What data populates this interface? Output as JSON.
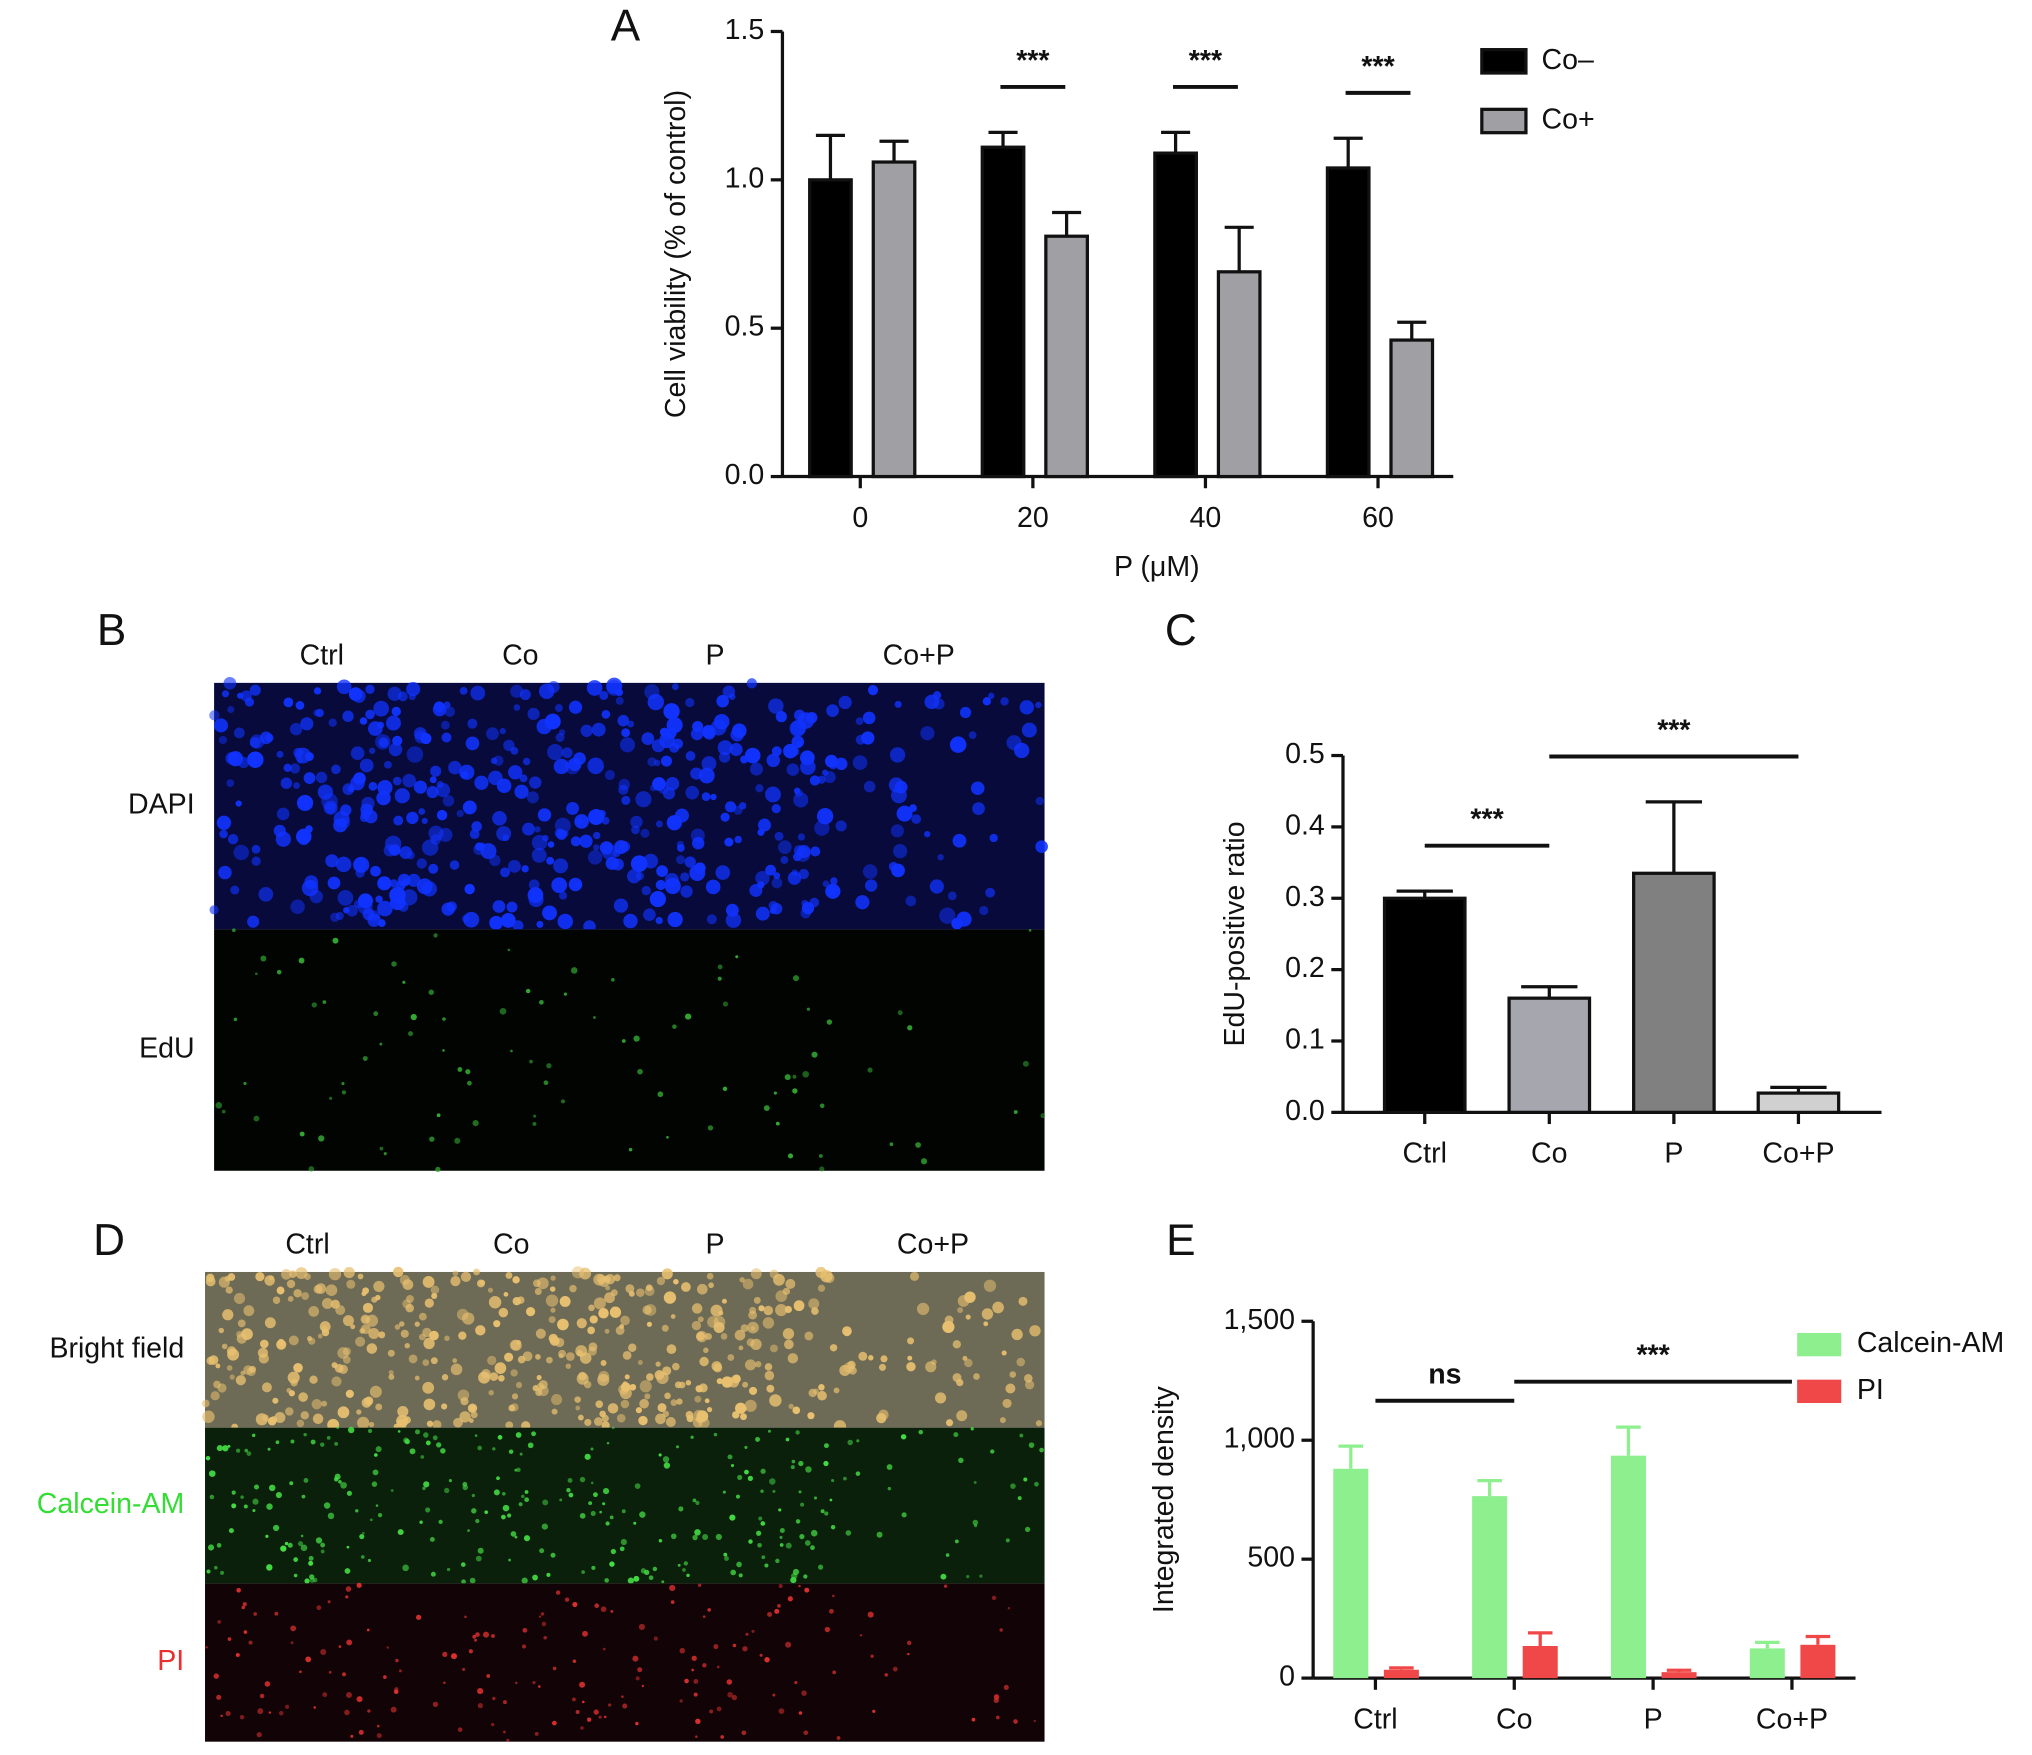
{
  "chart_data": [
    {
      "panel": "A",
      "type": "bar",
      "categories": [
        "0",
        "20",
        "40",
        "60"
      ],
      "x_label": "P (μM)",
      "y_label": "Cell viability (% of control)",
      "ylim": [
        0,
        1.5
      ],
      "yticks": [
        {
          "value": 0,
          "label": "0.0"
        },
        {
          "value": 0.5,
          "label": "0.5"
        },
        {
          "value": 1,
          "label": "1.0"
        },
        {
          "value": 1.5,
          "label": "1.5"
        }
      ],
      "legend": "top-right",
      "series": [
        {
          "name": "Co–",
          "color": "#000000",
          "values": [
            1.0,
            1.11,
            1.09,
            1.04
          ],
          "errors": [
            0.15,
            0.05,
            0.07,
            0.1
          ]
        },
        {
          "name": "Co+",
          "color": "#a0a0a4",
          "values": [
            1.06,
            0.81,
            0.69,
            0.46
          ],
          "errors": [
            0.07,
            0.08,
            0.15,
            0.06
          ]
        }
      ],
      "annotations": [
        {
          "text": "***",
          "categories": [
            "20"
          ]
        },
        {
          "text": "***",
          "categories": [
            "40"
          ]
        },
        {
          "text": "***",
          "categories": [
            "60"
          ]
        }
      ]
    },
    {
      "panel": "C",
      "type": "bar",
      "categories": [
        "Ctrl",
        "Co",
        "P",
        "Co+P"
      ],
      "y_label": "EdU-positive ratio",
      "ylim": [
        0,
        0.5
      ],
      "yticks": [
        {
          "value": 0,
          "label": "0.0"
        },
        0.1,
        0.2,
        0.3,
        0.4,
        0.5
      ],
      "series": [
        {
          "colors": [
            "#000000",
            "#a6a6ae",
            "#808080",
            "#d0d0d0"
          ],
          "values": [
            0.3,
            0.16,
            0.335,
            0.027
          ],
          "errors": [
            0.01,
            0.016,
            0.1,
            0.008
          ]
        }
      ],
      "annotations": [
        {
          "text": "***",
          "categories": [
            "Ctrl",
            "Co"
          ]
        },
        {
          "text": "***",
          "categories": [
            "Co",
            "Co+P"
          ]
        }
      ]
    },
    {
      "panel": "E",
      "type": "bar",
      "categories": [
        "Ctrl",
        "Co",
        "P",
        "Co+P"
      ],
      "y_label": "Integrated density",
      "ylim": [
        0,
        1500
      ],
      "yticks": [
        0,
        500,
        {
          "value": 1000,
          "label": "1,000"
        },
        {
          "value": 1500,
          "label": "1,500"
        }
      ],
      "legend": "top-right",
      "series": [
        {
          "name": "Calcein-AM",
          "color": "#8eef8e",
          "values": [
            880,
            765,
            935,
            125
          ],
          "errors": [
            95,
            65,
            120,
            25
          ]
        },
        {
          "name": "PI",
          "color": "#f04848",
          "values": [
            35,
            135,
            25,
            140
          ],
          "errors": [
            8,
            55,
            8,
            35
          ]
        }
      ],
      "annotations": [
        {
          "text": "ns",
          "categories": [
            "Ctrl",
            "Co"
          ]
        },
        {
          "text": "***",
          "categories": [
            "Co",
            "Co+P"
          ]
        }
      ]
    }
  ],
  "image_panels": [
    {
      "panel": "B",
      "columns": [
        "Ctrl",
        "Co",
        "P",
        "Co+P"
      ],
      "rows": [
        {
          "label": "DAPI",
          "color": "#111111"
        },
        {
          "label": "EdU",
          "color": "#111111"
        }
      ]
    },
    {
      "panel": "D",
      "columns": [
        "Ctrl",
        "Co",
        "P",
        "Co+P"
      ],
      "rows": [
        {
          "label": "Bright field",
          "color": "#111111"
        },
        {
          "label": "Calcein-AM",
          "color": "#33dd33"
        },
        {
          "label": "PI",
          "color": "#e83030"
        }
      ]
    }
  ]
}
